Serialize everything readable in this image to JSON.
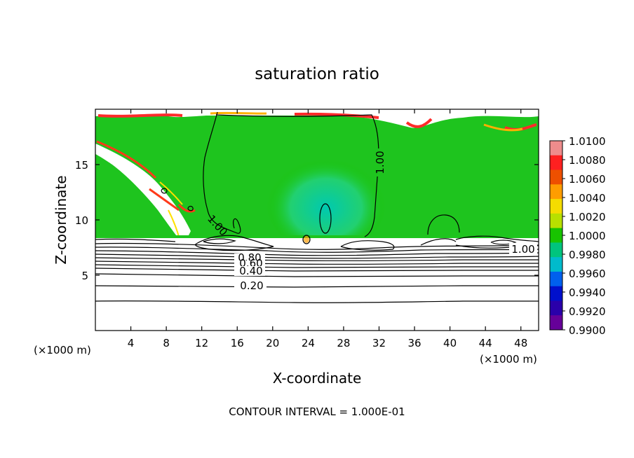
{
  "chart_data": {
    "type": "heatmap",
    "title": "saturation ratio",
    "xlabel": "X-coordinate",
    "ylabel": "Z-coordinate",
    "x_unit": "(×1000 m)",
    "z_unit": "(×1000 m)",
    "xlim": [
      0,
      50
    ],
    "ylim": [
      0,
      20
    ],
    "xticks": [
      4,
      8,
      12,
      16,
      20,
      24,
      28,
      32,
      36,
      40,
      44,
      48
    ],
    "yticks": [
      5,
      10,
      15
    ],
    "footer": "CONTOUR INTERVAL = 1.000E-01",
    "colorbar": {
      "ticks": [
        "1.0100",
        "1.0080",
        "1.0060",
        "1.0040",
        "1.0020",
        "1.0000",
        "0.9980",
        "0.9960",
        "0.9940",
        "0.9920",
        "0.9900"
      ],
      "colors": [
        "#ee8c8c",
        "#ff2020",
        "#ee5000",
        "#ff9d00",
        "#f5dc00",
        "#b8e000",
        "#18c400",
        "#00c47d",
        "#00bbcc",
        "#0060ee",
        "#0010cc",
        "#2a00aa",
        "#660099"
      ]
    },
    "contour_labels": [
      {
        "text": "1.00",
        "x": 31.5,
        "y": 15.5
      },
      {
        "text": "1.00",
        "x": 13.3,
        "y": 9.6
      },
      {
        "text": "1.00",
        "x": 49.0,
        "y": 7.2
      },
      {
        "text": "0.80",
        "x": 17.5,
        "y": 6.7
      },
      {
        "text": "0.60",
        "x": 17.5,
        "y": 6.3
      },
      {
        "text": "0.40",
        "x": 17.5,
        "y": 5.6
      },
      {
        "text": "0.20",
        "x": 17.5,
        "y": 4.0
      }
    ],
    "contour_levels": [
      0.2,
      0.4,
      0.6,
      0.8,
      1.0
    ],
    "grid": false,
    "legend": "right colorbar"
  }
}
